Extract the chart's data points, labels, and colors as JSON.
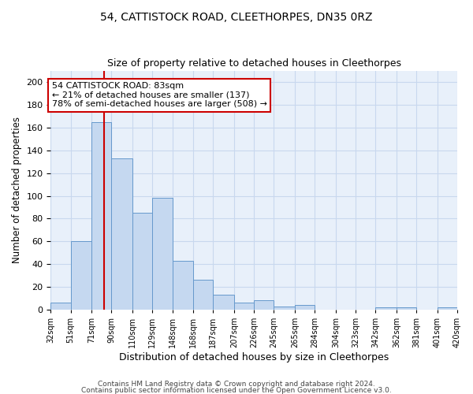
{
  "title": "54, CATTISTOCK ROAD, CLEETHORPES, DN35 0RZ",
  "subtitle": "Size of property relative to detached houses in Cleethorpes",
  "xlabel": "Distribution of detached houses by size in Cleethorpes",
  "ylabel": "Number of detached properties",
  "bin_edges": [
    32,
    51,
    71,
    90,
    110,
    129,
    148,
    168,
    187,
    207,
    226,
    245,
    265,
    284,
    304,
    323,
    342,
    362,
    381,
    401,
    420
  ],
  "bin_heights": [
    6,
    60,
    165,
    133,
    85,
    98,
    43,
    26,
    13,
    6,
    8,
    3,
    4,
    0,
    0,
    0,
    2,
    2,
    0,
    2
  ],
  "bar_color": "#c5d8f0",
  "bar_edge_color": "#6699cc",
  "property_line_x": 83,
  "property_line_color": "#cc0000",
  "annotation_text": "54 CATTISTOCK ROAD: 83sqm\n← 21% of detached houses are smaller (137)\n78% of semi-detached houses are larger (508) →",
  "annotation_box_color": "#ffffff",
  "annotation_box_edge_color": "#cc0000",
  "ylim": [
    0,
    210
  ],
  "yticks": [
    0,
    20,
    40,
    60,
    80,
    100,
    120,
    140,
    160,
    180,
    200
  ],
  "grid_color": "#c8d8ee",
  "background_color": "#e8f0fa",
  "footer_line1": "Contains HM Land Registry data © Crown copyright and database right 2024.",
  "footer_line2": "Contains public sector information licensed under the Open Government Licence v3.0.",
  "title_fontsize": 10,
  "subtitle_fontsize": 9,
  "xlabel_fontsize": 9,
  "ylabel_fontsize": 8.5,
  "annotation_fontsize": 8,
  "footer_fontsize": 6.5
}
